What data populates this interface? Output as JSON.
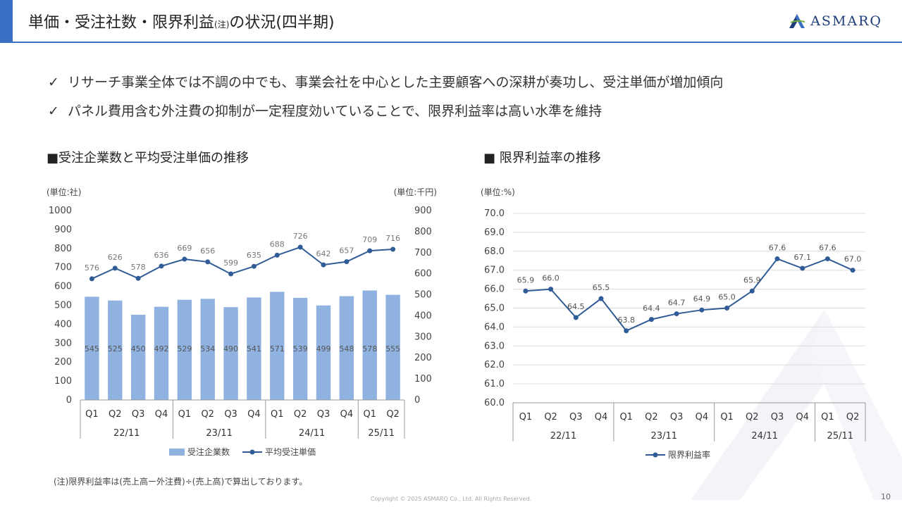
{
  "header": {
    "title_main": "単価・受注社数・限界利益",
    "title_note": "(注)",
    "title_tail": "の状況(四半期)",
    "logo_text": "ASMARQ"
  },
  "bullets": [
    {
      "check": "✓",
      "text": "リサーチ事業全体では不調の中でも、事業会社を中心とした主要顧客への深耕が奏功し、受注単価が増加傾向"
    },
    {
      "check": "✓",
      "text": "パネル費用含む外注費の抑制が一定程度効いていることで、限界利益率は高い水準を維持"
    }
  ],
  "left_section_title": "■受注企業数と平均受注単価の推移",
  "right_section_title": "■ 限界利益率の推移",
  "footnote": "(注)限界利益率は(売上高ー外注費)÷(売上高)で算出しております。",
  "copyright": "Copyright © 2025 ASMARQ Co., Ltd. All Rights Reserved.",
  "page_number": "10",
  "colors": {
    "accent": "#3a6fc4",
    "bar": "#8fb2e0",
    "line": "#2f5c96"
  },
  "chart_data": [
    {
      "type": "bar",
      "title": "■受注企業数と平均受注単価の推移",
      "categories": [
        "Q1",
        "Q2",
        "Q3",
        "Q4",
        "Q1",
        "Q2",
        "Q3",
        "Q4",
        "Q1",
        "Q2",
        "Q3",
        "Q4",
        "Q1",
        "Q2"
      ],
      "groups": [
        {
          "label": "22/11",
          "count": 4
        },
        {
          "label": "23/11",
          "count": 4
        },
        {
          "label": "24/11",
          "count": 4
        },
        {
          "label": "25/11",
          "count": 2
        }
      ],
      "y_left_label": "(単位:社)",
      "y_right_label": "(単位:千円)",
      "y_left_lim": [
        0,
        1000
      ],
      "y_left_ticks": [
        0,
        100,
        200,
        300,
        400,
        500,
        600,
        700,
        800,
        900,
        1000
      ],
      "y_right_lim": [
        0,
        900
      ],
      "y_right_ticks": [
        0,
        100,
        200,
        300,
        400,
        500,
        600,
        700,
        800,
        900
      ],
      "series": [
        {
          "name": "受注企業数",
          "kind": "bar",
          "axis": "left",
          "values": [
            545,
            525,
            450,
            492,
            529,
            534,
            490,
            541,
            571,
            539,
            499,
            548,
            578,
            555
          ]
        },
        {
          "name": "平均受注単価",
          "kind": "line",
          "axis": "right",
          "values": [
            576,
            626,
            578,
            636,
            669,
            656,
            599,
            635,
            688,
            726,
            642,
            657,
            709,
            716
          ]
        }
      ],
      "grid": false,
      "legend": "bottom"
    },
    {
      "type": "line",
      "title": "■ 限界利益率の推移",
      "categories": [
        "Q1",
        "Q2",
        "Q3",
        "Q4",
        "Q1",
        "Q2",
        "Q3",
        "Q4",
        "Q1",
        "Q2",
        "Q3",
        "Q4",
        "Q1",
        "Q2"
      ],
      "groups": [
        {
          "label": "22/11",
          "count": 4
        },
        {
          "label": "23/11",
          "count": 4
        },
        {
          "label": "24/11",
          "count": 4
        },
        {
          "label": "25/11",
          "count": 2
        }
      ],
      "ylabel": "(単位:%)",
      "ylim": [
        60.0,
        70.0
      ],
      "y_ticks": [
        "60.0",
        "61.0",
        "62.0",
        "63.0",
        "64.0",
        "65.0",
        "66.0",
        "67.0",
        "68.0",
        "69.0",
        "70.0"
      ],
      "series": [
        {
          "name": "限界利益率",
          "values": [
            65.9,
            66.0,
            64.5,
            65.5,
            63.8,
            64.4,
            64.7,
            64.9,
            65.0,
            65.9,
            67.6,
            67.1,
            67.6,
            67.0
          ]
        }
      ],
      "grid": true,
      "legend": "bottom"
    }
  ]
}
